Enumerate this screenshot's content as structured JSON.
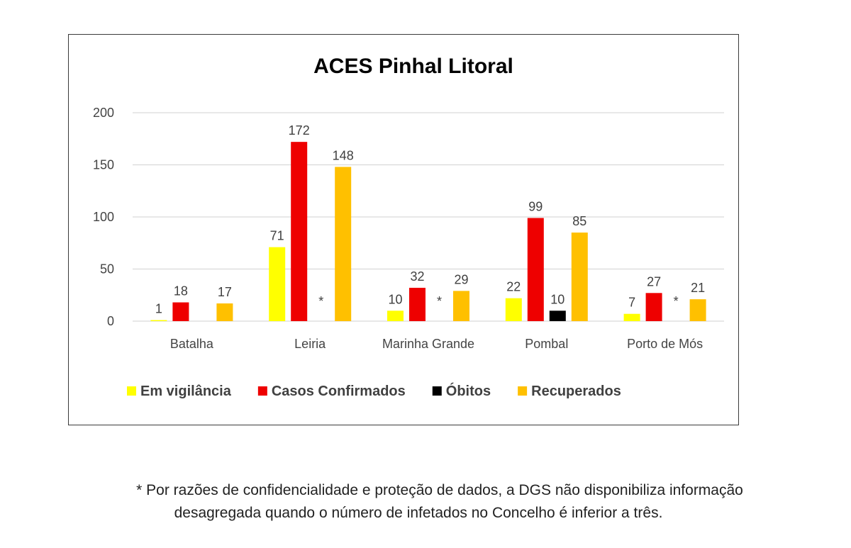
{
  "chart_data": {
    "type": "bar",
    "title": "ACES Pinhal Litoral",
    "categories": [
      "Batalha",
      "Leiria",
      "Marinha Grande",
      "Pombal",
      "Porto de Mós"
    ],
    "series": [
      {
        "name": "Em vigilância",
        "color": "#ffff00",
        "values": [
          1,
          71,
          10,
          22,
          7
        ]
      },
      {
        "name": "Casos Confirmados",
        "color": "#ee0000",
        "values": [
          18,
          172,
          32,
          99,
          27
        ]
      },
      {
        "name": "Óbitos",
        "color": "#000000",
        "values": [
          null,
          null,
          null,
          10,
          null
        ],
        "value_labels": [
          "",
          "*",
          "*",
          "10",
          "*"
        ]
      },
      {
        "name": "Recuperados",
        "color": "#ffc000",
        "values": [
          17,
          148,
          29,
          85,
          21
        ]
      }
    ],
    "ylim": [
      0,
      200
    ],
    "yticks": [
      "0",
      "50",
      "100",
      "150",
      "200"
    ],
    "grid": true,
    "legend_position": "bottom",
    "xlabel": "",
    "ylabel": ""
  },
  "footnote": {
    "line1": "* Por razões de confidencialidade e proteção de dados, a DGS não disponibiliza informação",
    "line2": "desagregada quando o número de infetados no Concelho é inferior a três."
  }
}
